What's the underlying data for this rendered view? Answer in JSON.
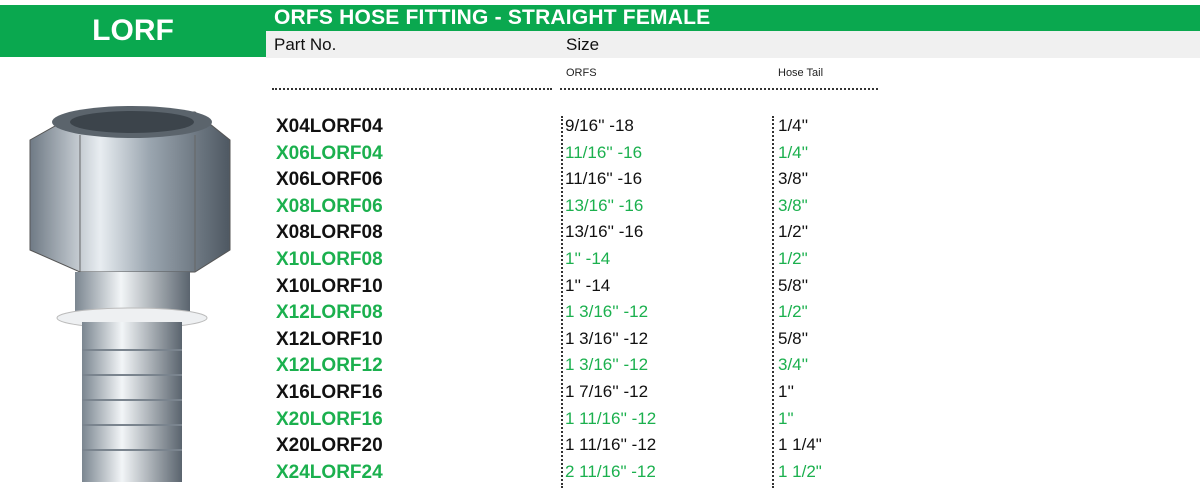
{
  "code": "LORF",
  "title": "ORFS HOSE FITTING - STRAIGHT FEMALE",
  "headers": {
    "part_no": "Part No.",
    "size": "Size",
    "orfs": "ORFS",
    "hose_tail": "Hose Tail"
  },
  "colors": {
    "brand": "#0aa84f",
    "alt_row": "#1bb04e"
  },
  "rows": [
    {
      "part": "X04LORF04",
      "orfs": "9/16'' -18",
      "tail": "1/4''"
    },
    {
      "part": "X06LORF04",
      "orfs": "11/16'' -16",
      "tail": "1/4''"
    },
    {
      "part": "X06LORF06",
      "orfs": "11/16'' -16",
      "tail": "3/8''"
    },
    {
      "part": "X08LORF06",
      "orfs": "13/16'' -16",
      "tail": "3/8\""
    },
    {
      "part": "X08LORF08",
      "orfs": "13/16'' -16",
      "tail": "1/2''"
    },
    {
      "part": "X10LORF08",
      "orfs": "1'' -14",
      "tail": "1/2\""
    },
    {
      "part": "X10LORF10",
      "orfs": "1'' -14",
      "tail": "5/8''"
    },
    {
      "part": "X12LORF08",
      "orfs": "1 3/16'' -12",
      "tail": "1/2\""
    },
    {
      "part": "X12LORF10",
      "orfs": "1 3/16'' -12",
      "tail": "5/8''"
    },
    {
      "part": "X12LORF12",
      "orfs": "1 3/16'' -12",
      "tail": "3/4''"
    },
    {
      "part": "X16LORF16",
      "orfs": "1 7/16'' -12",
      "tail": "1''"
    },
    {
      "part": "X20LORF16",
      "orfs": "1 11/16'' -12",
      "tail": "1\""
    },
    {
      "part": "X20LORF20",
      "orfs": "1 11/16'' -12",
      "tail": "1 1/4\""
    },
    {
      "part": "X24LORF24",
      "orfs": "2 11/16\" -12",
      "tail": "1 1/2\""
    }
  ]
}
